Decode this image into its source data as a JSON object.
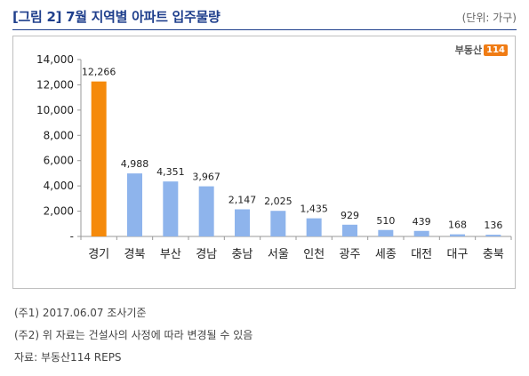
{
  "header": {
    "title": "[그림 2] 7월 지역별 아파트 입주물량",
    "unit": "(단위: 가구)"
  },
  "logo": {
    "text": "부동산",
    "badge": "114"
  },
  "chart_data": {
    "type": "bar",
    "categories": [
      "경기",
      "경북",
      "부산",
      "경남",
      "충남",
      "서울",
      "인천",
      "광주",
      "세종",
      "대전",
      "대구",
      "충북"
    ],
    "values": [
      12266,
      4988,
      4351,
      3967,
      2147,
      2025,
      1435,
      929,
      510,
      439,
      168,
      136
    ],
    "value_labels": [
      "12,266",
      "4,988",
      "4,351",
      "3,967",
      "2,147",
      "2,025",
      "1,435",
      "929",
      "510",
      "439",
      "168",
      "136"
    ],
    "ylim": [
      0,
      14000
    ],
    "yticks": [
      0,
      2000,
      4000,
      6000,
      8000,
      10000,
      12000,
      14000
    ],
    "ytick_labels": [
      "-",
      "2,000",
      "4,000",
      "6,000",
      "8,000",
      "10,000",
      "12,000",
      "14,000"
    ],
    "grid": false,
    "colors": {
      "highlight": "#f58a0b",
      "default": "#8eb4ec"
    },
    "highlight_index": 0
  },
  "notes": [
    "(주1) 2017.06.07 조사기준",
    "(주2) 위 자료는 건설사의 사정에 따라 변경될 수 있음",
    "자료: 부동산114 REPS"
  ]
}
